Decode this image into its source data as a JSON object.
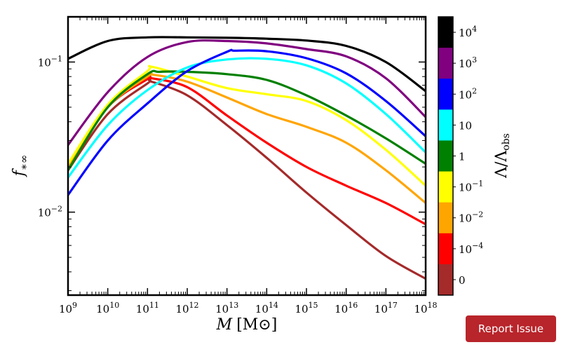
{
  "chart_data": {
    "type": "line",
    "xscale": "log",
    "yscale": "log",
    "xlim": [
      1000000000.0,
      1e+18
    ],
    "ylim": [
      0.0028,
      0.2
    ],
    "x_ticks": [
      {
        "value": 1000000000.0,
        "base": "10",
        "exp": "9"
      },
      {
        "value": 10000000000.0,
        "base": "10",
        "exp": "10"
      },
      {
        "value": 100000000000.0,
        "base": "10",
        "exp": "11"
      },
      {
        "value": 1000000000000.0,
        "base": "10",
        "exp": "12"
      },
      {
        "value": 10000000000000.0,
        "base": "10",
        "exp": "13"
      },
      {
        "value": 100000000000000.0,
        "base": "10",
        "exp": "14"
      },
      {
        "value": 1000000000000000.0,
        "base": "10",
        "exp": "15"
      },
      {
        "value": 1e+16,
        "base": "10",
        "exp": "16"
      },
      {
        "value": 1e+17,
        "base": "10",
        "exp": "17"
      },
      {
        "value": 1e+18,
        "base": "10",
        "exp": "18"
      }
    ],
    "y_ticks": [
      {
        "value": 0.1,
        "base": "10",
        "exp": "−1"
      },
      {
        "value": 0.01,
        "base": "10",
        "exp": "−2"
      }
    ],
    "xlabel": {
      "var": "M",
      "unit": "[M⊙]"
    },
    "ylabel": {
      "var": "f",
      "sub": "∗∞"
    },
    "colorbar": {
      "label": "Λ/Λobs",
      "label_main": "Λ/Λ",
      "label_sub": "obs",
      "entries": [
        {
          "color": "#000000",
          "base": "10",
          "exp": "4"
        },
        {
          "color": "#800080",
          "base": "10",
          "exp": "3"
        },
        {
          "color": "#0000ff",
          "base": "10",
          "exp": "2"
        },
        {
          "color": "#00ffff",
          "base": "10",
          "exp": ""
        },
        {
          "color": "#008000",
          "base": "1",
          "exp": ""
        },
        {
          "color": "#ffff00",
          "base": "10",
          "exp": "−1"
        },
        {
          "color": "#ffa500",
          "base": "10",
          "exp": "−2"
        },
        {
          "color": "#ff0000",
          "base": "10",
          "exp": "−4"
        },
        {
          "color": "#a52a2a",
          "base": "0",
          "exp": ""
        }
      ]
    },
    "series": [
      {
        "color": "#a52a2a",
        "x": [
          1000000000.0,
          10000000000.0,
          100000000000.0,
          126000000000.0,
          1000000000000.0,
          10000000000000.0,
          100000000000000.0,
          1000000000000000.0,
          1e+16,
          1e+17,
          1e+18
        ],
        "y": [
          0.019,
          0.045,
          0.072,
          0.074,
          0.06,
          0.038,
          0.023,
          0.0135,
          0.0082,
          0.0051,
          0.0036
        ]
      },
      {
        "color": "#ff0000",
        "x": [
          1000000000.0,
          10000000000.0,
          100000000000.0,
          126000000000.0,
          1000000000000.0,
          10000000000000.0,
          100000000000000.0,
          1000000000000000.0,
          1e+16,
          1e+17,
          1e+18
        ],
        "y": [
          0.02,
          0.05,
          0.077,
          0.078,
          0.068,
          0.044,
          0.029,
          0.02,
          0.015,
          0.0115,
          0.0083
        ]
      },
      {
        "color": "#ffa500",
        "x": [
          1000000000.0,
          10000000000.0,
          100000000000.0,
          150000000000.0,
          1000000000000.0,
          10000000000000.0,
          100000000000000.0,
          1000000000000000.0,
          1e+16,
          1e+17,
          1e+18
        ],
        "y": [
          0.02,
          0.05,
          0.08,
          0.082,
          0.074,
          0.058,
          0.045,
          0.037,
          0.029,
          0.019,
          0.0115
        ]
      },
      {
        "color": "#ffff00",
        "x": [
          1000000000.0,
          10000000000.0,
          100000000000.0,
          126000000000.0,
          1000000000000.0,
          10000000000000.0,
          100000000000000.0,
          1000000000000000.0,
          1e+16,
          1e+17,
          1e+18
        ],
        "y": [
          0.021,
          0.052,
          0.087,
          0.093,
          0.08,
          0.067,
          0.061,
          0.055,
          0.041,
          0.026,
          0.015
        ]
      },
      {
        "color": "#008000",
        "x": [
          1000000000.0,
          10000000000.0,
          100000000000.0,
          200000000000.0,
          1000000000000.0,
          10000000000000.0,
          100000000000000.0,
          1000000000000000.0,
          1e+16,
          1e+17,
          1e+18
        ],
        "y": [
          0.019,
          0.05,
          0.083,
          0.086,
          0.086,
          0.083,
          0.076,
          0.06,
          0.044,
          0.031,
          0.021
        ]
      },
      {
        "color": "#00ffff",
        "x": [
          1000000000.0,
          10000000000.0,
          100000000000.0,
          1000000000000.0,
          10000000000000.0,
          100000000000000.0,
          1000000000000000.0,
          1e+16,
          1e+17,
          1e+18
        ],
        "y": [
          0.017,
          0.038,
          0.065,
          0.092,
          0.104,
          0.105,
          0.095,
          0.072,
          0.045,
          0.025
        ]
      },
      {
        "color": "#0000ff",
        "x": [
          1000000000.0,
          10000000000.0,
          100000000000.0,
          1000000000000.0,
          10000000000000.0,
          16000000000000.0,
          100000000000000.0,
          1000000000000000.0,
          1e+16,
          1e+17,
          1e+18
        ],
        "y": [
          0.013,
          0.03,
          0.053,
          0.087,
          0.117,
          0.119,
          0.118,
          0.106,
          0.084,
          0.055,
          0.032
        ]
      },
      {
        "color": "#800080",
        "x": [
          1000000000.0,
          10000000000.0,
          100000000000.0,
          1000000000000.0,
          10000000000000.0,
          100000000000000.0,
          1000000000000000.0,
          1e+16,
          1e+17,
          1e+18
        ],
        "y": [
          0.028,
          0.063,
          0.108,
          0.136,
          0.138,
          0.133,
          0.122,
          0.109,
          0.078,
          0.043
        ]
      },
      {
        "color": "#000000",
        "x": [
          1000000000.0,
          10000000000.0,
          100000000000.0,
          1000000000000.0,
          10000000000000.0,
          100000000000000.0,
          1000000000000000.0,
          1e+16,
          1e+17,
          1e+18
        ],
        "y": [
          0.105,
          0.138,
          0.146,
          0.146,
          0.145,
          0.143,
          0.139,
          0.128,
          0.1,
          0.064
        ]
      }
    ]
  },
  "button": {
    "label": "Report Issue"
  }
}
